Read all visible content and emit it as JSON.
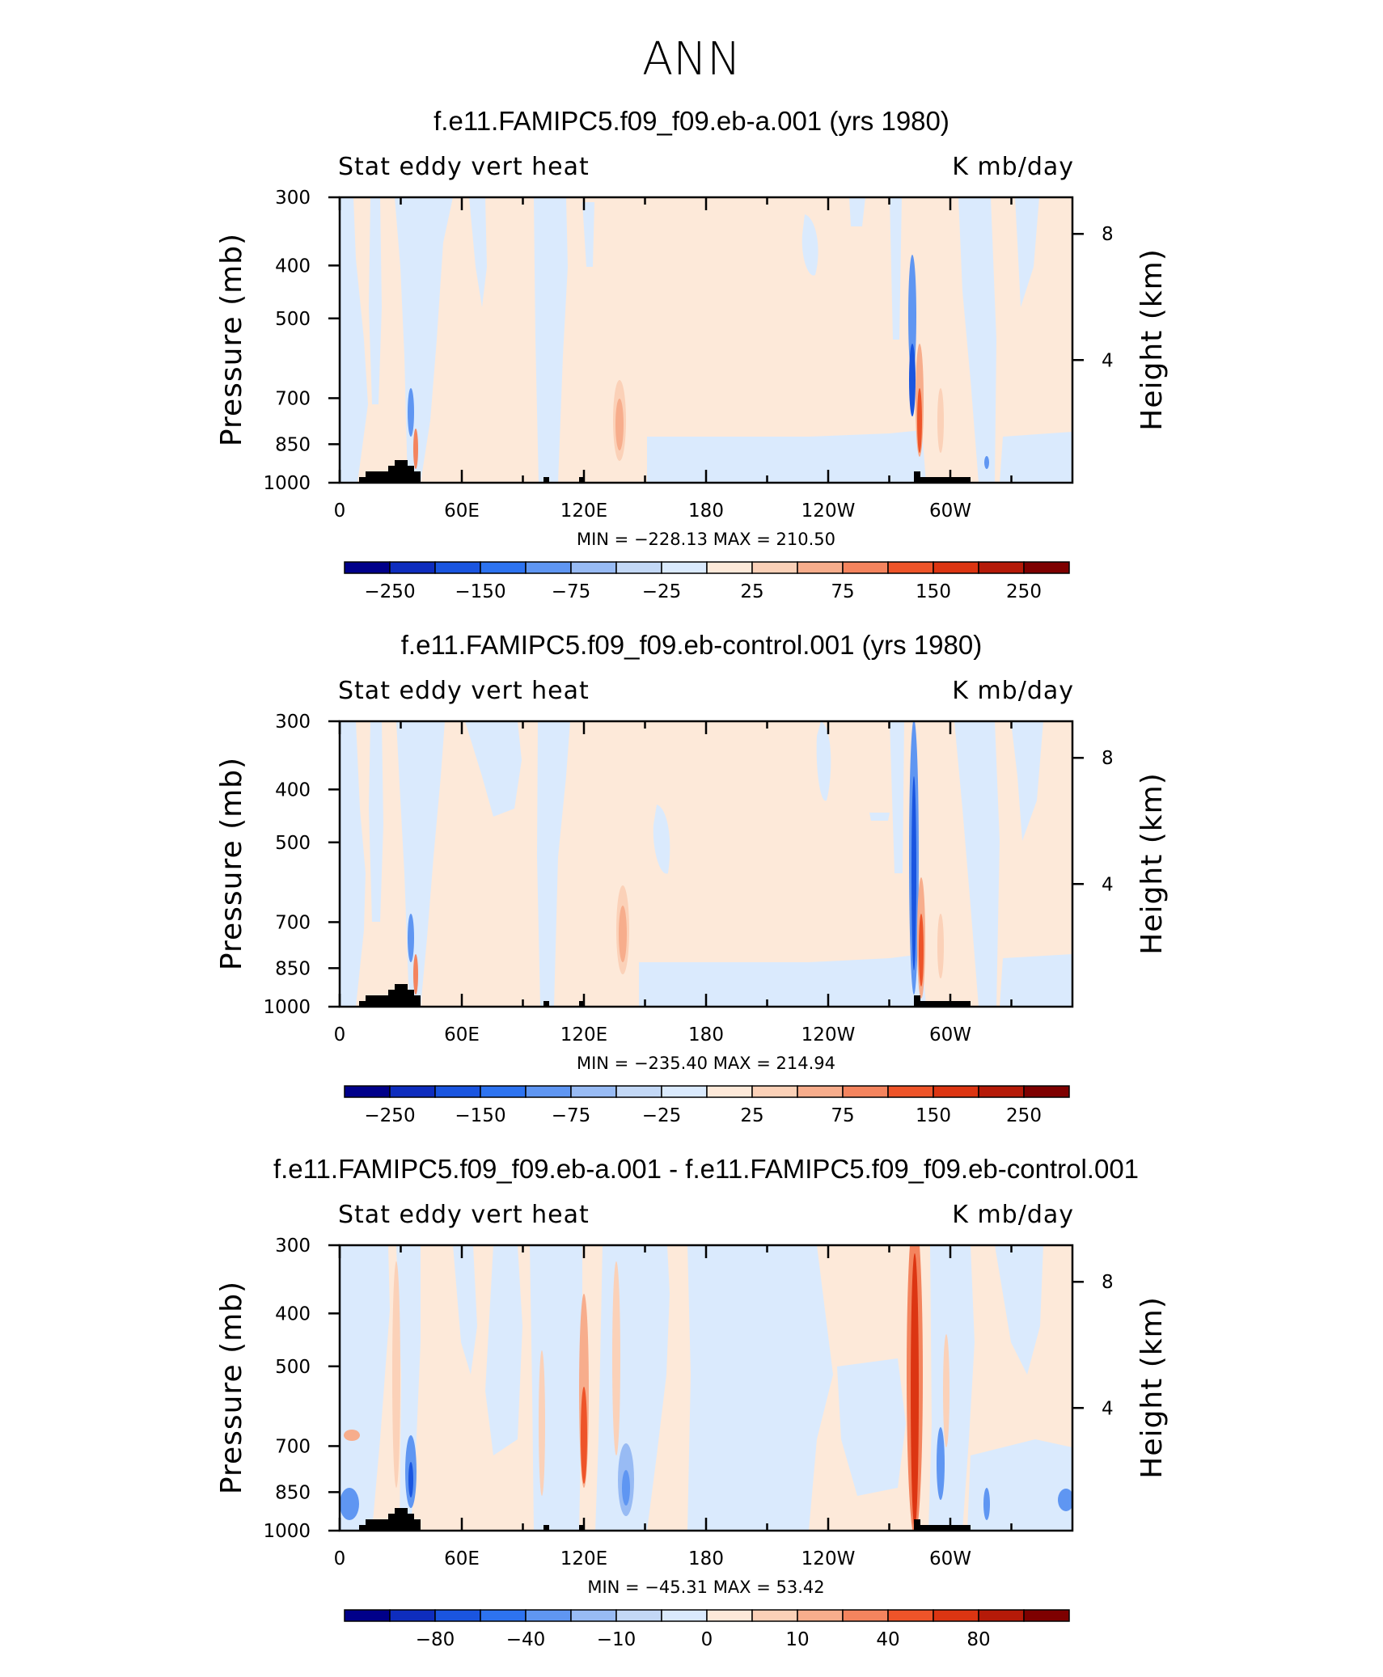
{
  "figure_title": "ANN",
  "colors": {
    "palette": [
      "#00008a",
      "#0e2dbe",
      "#1a55e0",
      "#2d73f0",
      "#5f96f2",
      "#98bbf4",
      "#c3d8f6",
      "#daeafd",
      "#fde9d9",
      "#fbd1b8",
      "#f7ad8c",
      "#f4845e",
      "#ee5429",
      "#dc3512",
      "#b51a08",
      "#7e0000"
    ],
    "land": "#000000"
  },
  "chart_data": [
    {
      "type": "heatmap",
      "title": "f.e11.FAMIPC5.f09_f09.eb-a.001 (yrs 1980)",
      "left_label": "Stat eddy vert heat",
      "right_label": "K mb/day",
      "ylabel": "Pressure (mb)",
      "y2label": "Height (km)",
      "x_ticks": [
        "0",
        "60E",
        "120E",
        "180",
        "120W",
        "60W"
      ],
      "x_tick_values": [
        0,
        60,
        120,
        180,
        240,
        300
      ],
      "xlim": [
        0,
        360
      ],
      "y_ticks": [
        "300",
        "400",
        "500",
        "700",
        "850",
        "1000"
      ],
      "y_tick_values": [
        300,
        400,
        500,
        700,
        850,
        1000
      ],
      "ylim": [
        1000,
        300
      ],
      "y2_ticks": [
        "8",
        "4"
      ],
      "y2_tick_values": [
        8,
        4
      ],
      "min_max": "MIN = −228.13   MAX = 210.50",
      "min": -228.13,
      "max": 210.5,
      "colorbar_labels": [
        "−250",
        "−150",
        "−75",
        "−25",
        "25",
        "75",
        "150",
        "250"
      ],
      "colorbar_label_boundaries": [
        1,
        3,
        5,
        7,
        9,
        11,
        13,
        15
      ]
    },
    {
      "type": "heatmap",
      "title": "f.e11.FAMIPC5.f09_f09.eb-control.001 (yrs 1980)",
      "left_label": "Stat eddy vert heat",
      "right_label": "K mb/day",
      "ylabel": "Pressure (mb)",
      "y2label": "Height (km)",
      "x_ticks": [
        "0",
        "60E",
        "120E",
        "180",
        "120W",
        "60W"
      ],
      "x_tick_values": [
        0,
        60,
        120,
        180,
        240,
        300
      ],
      "xlim": [
        0,
        360
      ],
      "y_ticks": [
        "300",
        "400",
        "500",
        "700",
        "850",
        "1000"
      ],
      "y_tick_values": [
        300,
        400,
        500,
        700,
        850,
        1000
      ],
      "ylim": [
        1000,
        300
      ],
      "y2_ticks": [
        "8",
        "4"
      ],
      "y2_tick_values": [
        8,
        4
      ],
      "min_max": "MIN = −235.40   MAX = 214.94",
      "min": -235.4,
      "max": 214.94,
      "colorbar_labels": [
        "−250",
        "−150",
        "−75",
        "−25",
        "25",
        "75",
        "150",
        "250"
      ],
      "colorbar_label_boundaries": [
        1,
        3,
        5,
        7,
        9,
        11,
        13,
        15
      ]
    },
    {
      "type": "heatmap",
      "title": "f.e11.FAMIPC5.f09_f09.eb-a.001 - f.e11.FAMIPC5.f09_f09.eb-control.001",
      "left_label": "Stat eddy vert heat",
      "right_label": "K mb/day",
      "ylabel": "Pressure (mb)",
      "y2label": "Height (km)",
      "x_ticks": [
        "0",
        "60E",
        "120E",
        "180",
        "120W",
        "60W"
      ],
      "x_tick_values": [
        0,
        60,
        120,
        180,
        240,
        300
      ],
      "xlim": [
        0,
        360
      ],
      "y_ticks": [
        "300",
        "400",
        "500",
        "700",
        "850",
        "1000"
      ],
      "y_tick_values": [
        300,
        400,
        500,
        700,
        850,
        1000
      ],
      "ylim": [
        1000,
        300
      ],
      "y2_ticks": [
        "8",
        "4"
      ],
      "y2_tick_values": [
        8,
        4
      ],
      "min_max": "MIN = −45.31   MAX =   53.42",
      "min": -45.31,
      "max": 53.42,
      "colorbar_labels": [
        "−80",
        "−40",
        "−10",
        "0",
        "10",
        "40",
        "80"
      ],
      "colorbar_label_boundaries": [
        2,
        4,
        6,
        8,
        10,
        12,
        14
      ]
    }
  ]
}
